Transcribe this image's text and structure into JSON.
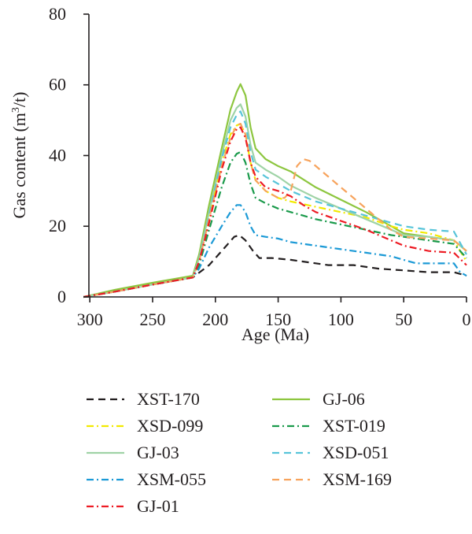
{
  "chart_data": {
    "type": "line",
    "title": "",
    "xlabel": "Age (Ma)",
    "ylabel_parts": [
      "Gas content (m",
      "3",
      "/t)"
    ],
    "xlim": [
      300,
      0
    ],
    "ylim": [
      0,
      80
    ],
    "x_reversed": true,
    "x_ticks": [
      "300",
      "250",
      "200",
      "150",
      "100",
      "50",
      "0"
    ],
    "y_ticks": [
      "0",
      "20",
      "40",
      "60",
      "80"
    ],
    "grid": false,
    "legend_position": "bottom",
    "series": [
      {
        "name": "XST-170",
        "color": "#231f20",
        "dash": "dash",
        "x": [
          305,
          280,
          250,
          218,
          205,
          195,
          190,
          185,
          181,
          176,
          170,
          165,
          155,
          140,
          110,
          90,
          70,
          50,
          30,
          10,
          5,
          0
        ],
        "y": [
          0,
          1.5,
          3.5,
          5.5,
          9,
          13,
          15,
          17,
          17.5,
          16,
          13,
          11,
          11,
          10.5,
          9,
          9,
          8,
          7.5,
          7,
          7,
          6.5,
          6
        ]
      },
      {
        "name": "GJ-06",
        "color": "#8dc63f",
        "dash": "solid",
        "x": [
          305,
          280,
          250,
          218,
          213,
          205,
          195,
          188,
          183,
          180,
          176,
          172,
          168,
          160,
          150,
          140,
          120,
          100,
          80,
          60,
          50,
          30,
          10,
          0
        ],
        "y": [
          0,
          2,
          4,
          6,
          12,
          26,
          42,
          53,
          58,
          60.2,
          57,
          48,
          42,
          39,
          37,
          35.5,
          31,
          27.5,
          24,
          20,
          18,
          17,
          16,
          13
        ]
      },
      {
        "name": "XSD-099",
        "color": "#f2ea00",
        "dash": "dashdot",
        "x": [
          305,
          280,
          250,
          218,
          213,
          205,
          195,
          188,
          183,
          180,
          176,
          172,
          168,
          160,
          150,
          140,
          120,
          100,
          80,
          60,
          50,
          30,
          10,
          0
        ],
        "y": [
          0,
          1.5,
          3.5,
          5.5,
          10,
          22,
          38,
          46,
          48.5,
          49,
          46,
          38,
          33,
          30,
          28,
          27,
          25.5,
          24,
          22.5,
          20,
          19,
          18,
          16,
          10
        ]
      },
      {
        "name": "XST-019",
        "color": "#1a9a4b",
        "dash": "dashdot",
        "x": [
          305,
          280,
          250,
          218,
          213,
          205,
          195,
          188,
          183,
          180,
          176,
          172,
          168,
          160,
          150,
          140,
          120,
          100,
          80,
          60,
          50,
          30,
          10,
          0
        ],
        "y": [
          0,
          1.5,
          3.5,
          5.5,
          9,
          19,
          31,
          38,
          40.5,
          41,
          38,
          32,
          28,
          26.5,
          25,
          24,
          22,
          20.5,
          19,
          17.5,
          17,
          16,
          15,
          11
        ]
      },
      {
        "name": "GJ-03",
        "color": "#9fd3a6",
        "dash": "solid",
        "x": [
          305,
          280,
          250,
          218,
          213,
          205,
          195,
          188,
          183,
          180,
          176,
          172,
          168,
          160,
          150,
          140,
          120,
          100,
          80,
          60,
          50,
          30,
          10,
          0
        ],
        "y": [
          0,
          1.5,
          3.5,
          5.5,
          11,
          24,
          40,
          50,
          53.5,
          54.5,
          51,
          43,
          38,
          36,
          34,
          31.5,
          28,
          25,
          22,
          19,
          17.5,
          17,
          16,
          13
        ]
      },
      {
        "name": "XSD-051",
        "color": "#57c4d9",
        "dash": "dash",
        "x": [
          305,
          280,
          250,
          218,
          213,
          205,
          195,
          188,
          183,
          180,
          176,
          172,
          168,
          160,
          150,
          140,
          120,
          100,
          80,
          60,
          50,
          30,
          10,
          0
        ],
        "y": [
          0,
          1.5,
          3.5,
          5.5,
          10.5,
          23,
          39,
          48,
          51.5,
          52.5,
          49,
          41,
          36,
          34,
          32,
          30,
          27,
          25,
          23,
          21,
          20,
          19,
          18.5,
          12
        ]
      },
      {
        "name": "XSM-055",
        "color": "#1c9ad6",
        "dash": "dashdot",
        "x": [
          305,
          280,
          250,
          218,
          213,
          205,
          195,
          188,
          183,
          180,
          176,
          172,
          168,
          160,
          150,
          140,
          120,
          100,
          80,
          60,
          40,
          20,
          10,
          5,
          0
        ],
        "y": [
          0,
          1.5,
          3.5,
          5.5,
          8,
          14,
          20,
          24,
          26,
          26,
          24,
          20,
          17.5,
          17,
          16.5,
          15.5,
          14.5,
          13.5,
          12.5,
          11.5,
          9.5,
          9.5,
          9.5,
          7,
          6
        ]
      },
      {
        "name": "XSM-169",
        "color": "#f7a35c",
        "dash": "dash",
        "x": [
          305,
          280,
          250,
          218,
          213,
          205,
          195,
          188,
          183,
          180,
          176,
          172,
          168,
          160,
          150,
          145,
          140,
          135,
          130,
          125,
          120,
          110,
          100,
          90,
          80,
          70,
          60,
          50,
          30,
          10,
          0
        ],
        "y": [
          0,
          1.5,
          3.5,
          5.5,
          10,
          22,
          37,
          45,
          48.5,
          49,
          46,
          38,
          33,
          30,
          28,
          28,
          30,
          37,
          39,
          38.5,
          37,
          34,
          31,
          28,
          25,
          22,
          19,
          17,
          16.5,
          16,
          13
        ]
      },
      {
        "name": "GJ-01",
        "color": "#ed1c24",
        "dash": "dashdot",
        "x": [
          305,
          280,
          250,
          218,
          213,
          205,
          195,
          188,
          183,
          180,
          176,
          172,
          168,
          160,
          150,
          140,
          130,
          120,
          100,
          80,
          60,
          50,
          30,
          10,
          0
        ],
        "y": [
          0,
          1.5,
          3.5,
          5.5,
          10,
          21,
          36,
          44,
          47.5,
          48,
          45,
          38,
          34,
          31,
          30,
          28.5,
          26,
          24,
          21.5,
          19,
          16,
          14.5,
          13,
          12.5,
          9
        ]
      }
    ]
  }
}
